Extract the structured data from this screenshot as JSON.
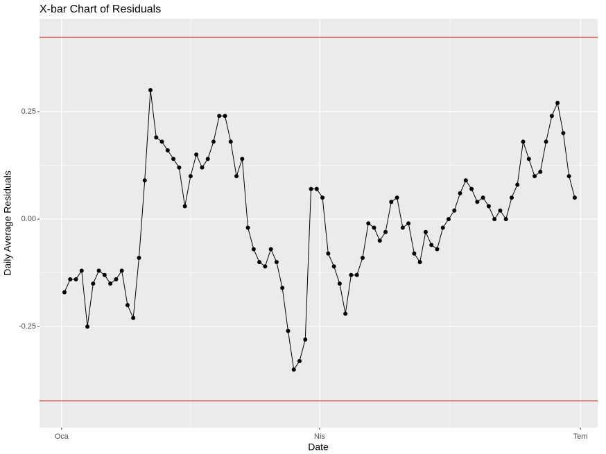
{
  "chart_data": {
    "type": "line",
    "title": "X-bar Chart of Residuals",
    "x_label": "Date",
    "y_label": "Daily Average Residuals",
    "x": [
      1,
      3,
      5,
      7,
      9,
      11,
      13,
      15,
      17,
      19,
      21,
      23,
      25,
      27,
      29,
      31,
      33,
      35,
      37,
      39,
      41,
      43,
      45,
      47,
      49,
      51,
      53,
      55,
      57,
      59,
      61,
      63,
      65,
      67,
      69,
      71,
      73,
      75,
      77,
      79,
      81,
      83,
      85,
      87,
      89,
      91,
      93,
      95,
      97,
      99,
      101,
      103,
      105,
      107,
      109,
      111,
      113,
      115,
      117,
      119,
      121,
      123,
      125,
      127,
      129,
      131,
      133,
      135,
      137,
      139,
      141,
      143,
      145,
      147,
      149,
      151,
      153,
      155,
      157,
      159,
      161,
      163,
      165,
      167,
      169,
      171,
      173,
      175,
      177,
      179
    ],
    "series": [
      {
        "name": "Residuals",
        "color": "#000000",
        "values": [
          -0.17,
          -0.14,
          -0.14,
          -0.12,
          -0.25,
          -0.15,
          -0.12,
          -0.13,
          -0.15,
          -0.14,
          -0.12,
          -0.2,
          -0.23,
          -0.09,
          0.09,
          0.3,
          0.19,
          0.18,
          0.16,
          0.14,
          0.12,
          0.03,
          0.1,
          0.15,
          0.12,
          0.14,
          0.18,
          0.24,
          0.24,
          0.18,
          0.1,
          0.14,
          -0.02,
          -0.07,
          -0.1,
          -0.11,
          -0.07,
          -0.1,
          -0.16,
          -0.26,
          -0.35,
          -0.33,
          -0.28,
          0.07,
          0.07,
          0.05,
          -0.08,
          -0.11,
          -0.15,
          -0.22,
          -0.13,
          -0.13,
          -0.09,
          -0.01,
          -0.02,
          -0.05,
          -0.03,
          0.04,
          0.05,
          -0.02,
          -0.01,
          -0.08,
          -0.1,
          -0.03,
          -0.06,
          -0.07,
          -0.02,
          0.0,
          0.02,
          0.06,
          0.09,
          0.07,
          0.04,
          0.05,
          0.03,
          0.0,
          0.02,
          0.0,
          0.05,
          0.08,
          0.18,
          0.14,
          0.1,
          0.11,
          0.18,
          0.24,
          0.27,
          0.2,
          0.1,
          0.05
        ]
      }
    ],
    "hlines": [
      {
        "value": 0.4226,
        "color": "#cc0000"
      },
      {
        "value": -0.4226,
        "color": "#cc0000"
      }
    ],
    "xlim": [
      -7.7,
      187
    ],
    "xticks": [
      {
        "value": 0,
        "label": "Oca"
      },
      {
        "value": 90,
        "label": "Nis"
      },
      {
        "value": 181,
        "label": "Tem"
      }
    ],
    "ylim": [
      -0.485,
      0.466
    ],
    "yticks": [
      -0.25,
      {
        "value": 0,
        "label": "0.00"
      },
      0.25
    ],
    "grid": true,
    "panel_color": "#ebebeb"
  }
}
